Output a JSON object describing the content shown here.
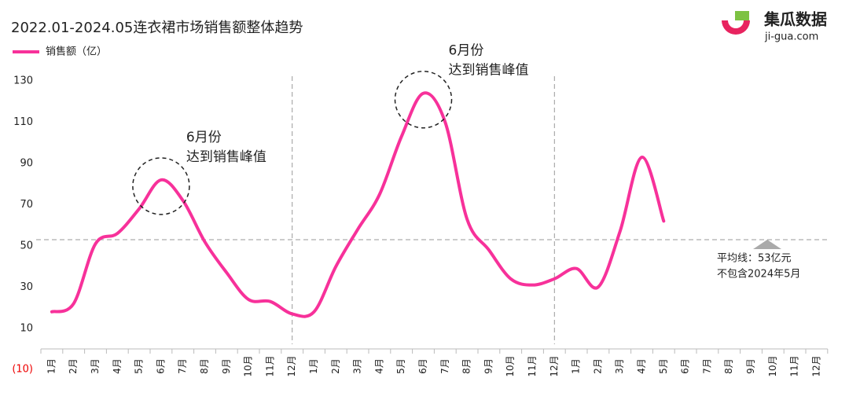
{
  "chart_data": {
    "type": "line",
    "title": "2022.01-2024.05连衣裙市场销售额整体趋势",
    "brand": {
      "name": "集瓜数据",
      "url": "ji-gua.com"
    },
    "categories": [
      "1月",
      "2月",
      "3月",
      "4月",
      "5月",
      "6月",
      "7月",
      "8月",
      "9月",
      "10月",
      "11月",
      "12月",
      "1月",
      "2月",
      "3月",
      "4月",
      "5月",
      "6月",
      "7月",
      "8月",
      "9月",
      "10月",
      "11月",
      "12月",
      "1月",
      "2月",
      "3月",
      "4月",
      "5月",
      "6月",
      "7月",
      "8月",
      "9月",
      "10月",
      "11月",
      "12月"
    ],
    "series": [
      {
        "name": "销售额（亿）",
        "color": "#f7319a",
        "values": [
          18,
          22,
          51,
          56,
          68,
          82,
          72,
          52,
          37,
          24,
          23,
          17,
          18,
          40,
          58,
          75,
          103,
          124,
          110,
          63,
          48,
          34,
          31,
          34,
          39,
          30,
          57,
          93,
          62,
          null,
          null,
          null,
          null,
          null,
          null,
          null
        ]
      }
    ],
    "ylim": [
      0,
      130
    ],
    "yticks": [
      {
        "value": -10,
        "label": "(10)"
      },
      10,
      30,
      50,
      70,
      90,
      110,
      130
    ],
    "average_line": 53,
    "annotations": [
      {
        "line1": "6月份",
        "line2": "达到销售峰值"
      },
      {
        "line1": "6月份",
        "line2": "达到销售峰值"
      }
    ],
    "average_note": {
      "line1": "平均线：53亿元",
      "line2": "不包含2024年5月"
    }
  }
}
